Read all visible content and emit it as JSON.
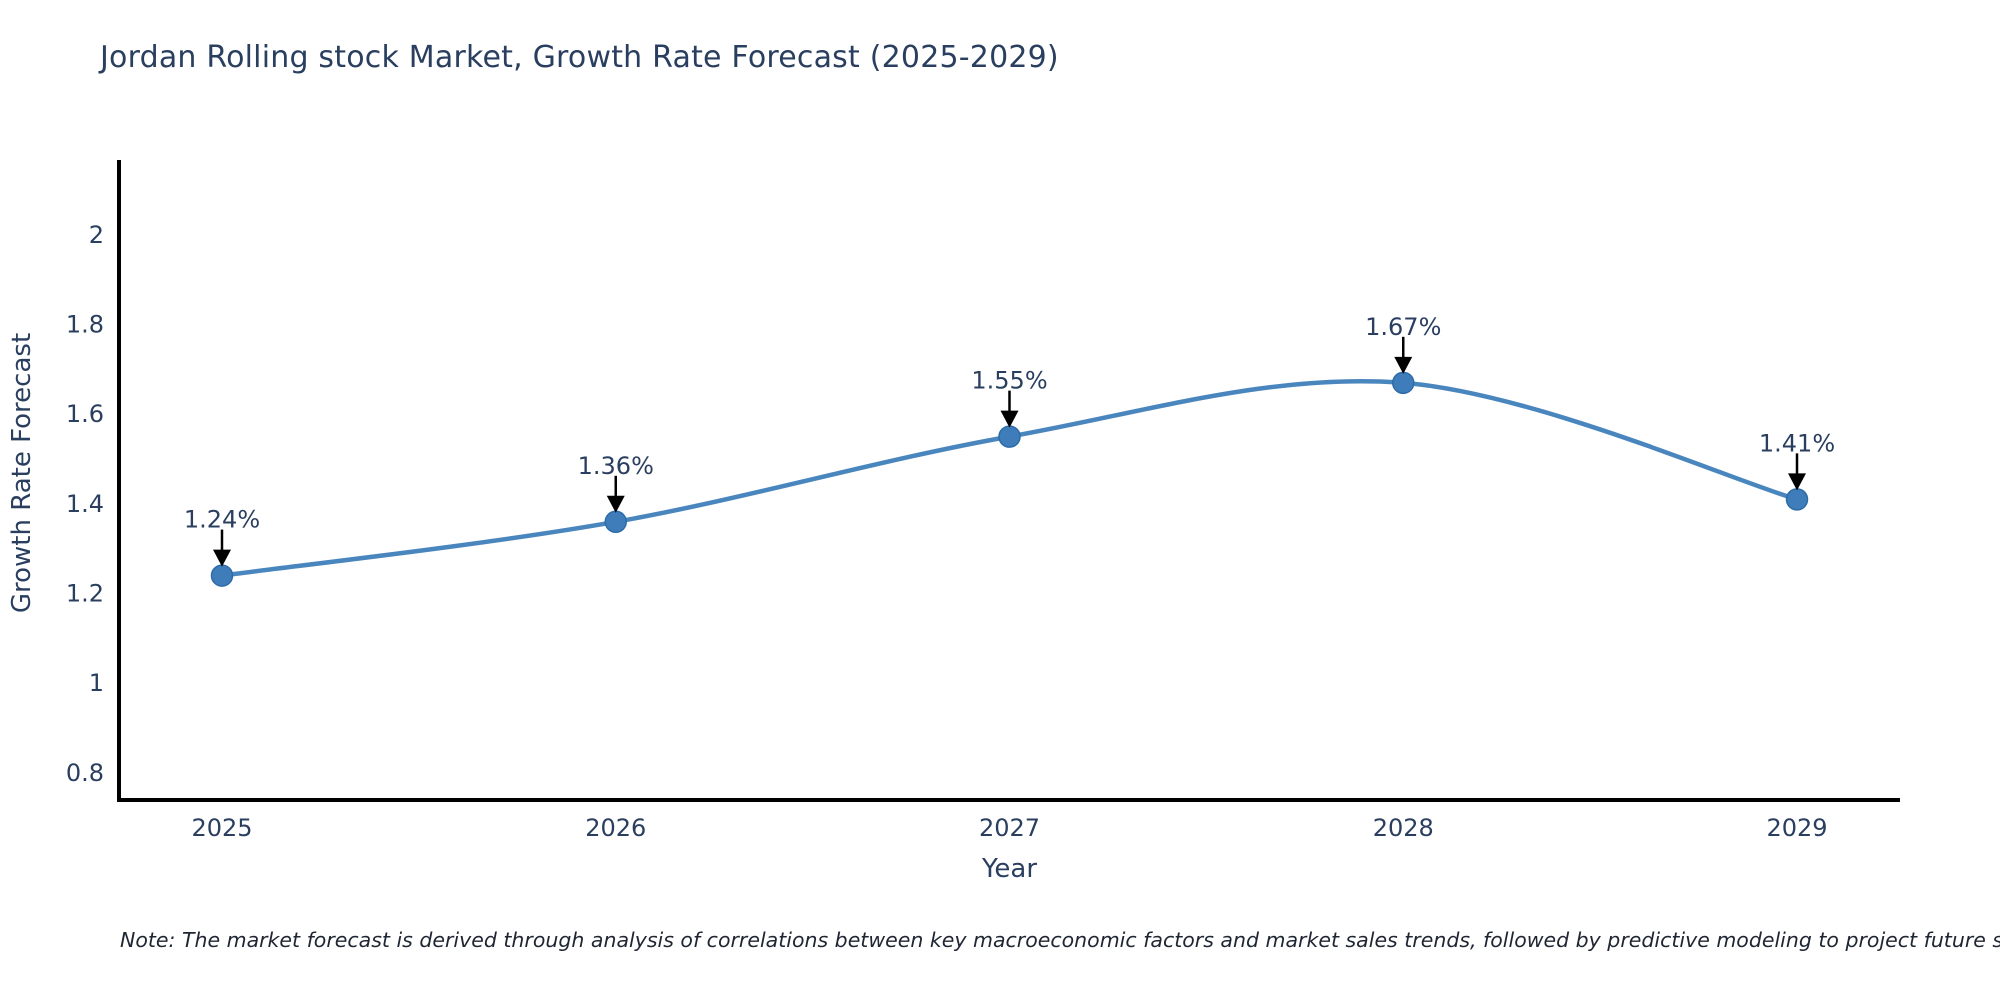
{
  "title": "Jordan Rolling stock Market, Growth Rate Forecast (2025-2029)",
  "note": "Note: The market forecast is derived through analysis of correlations between key macroeconomic factors and market sales trends, followed by predictive modeling to project future sales",
  "colors": {
    "title_text": "#2a3f5f",
    "tick_text": "#2a3f5f",
    "axis_line": "#000000",
    "series_line": "#4a86be",
    "marker_fill": "#3e7cba",
    "marker_edge": "#2e6ca8",
    "annotation_arrow": "#000000",
    "note_text": "#1f2633",
    "background": "#ffffff"
  },
  "chart_data": {
    "type": "line",
    "curve": "spline",
    "title": "Jordan Rolling stock Market, Growth Rate Forecast (2025-2029)",
    "xlabel": "Year",
    "ylabel": "Growth Rate Forecast",
    "x": [
      2025,
      2026,
      2027,
      2028,
      2029
    ],
    "values": [
      1.24,
      1.36,
      1.55,
      1.67,
      1.41
    ],
    "point_labels": [
      "1.24%",
      "1.36%",
      "1.55%",
      "1.67%",
      "1.41%"
    ],
    "xtick_labels": [
      "2025",
      "2026",
      "2027",
      "2028",
      "2029"
    ],
    "yticks": [
      2,
      1.8,
      1.6,
      1.4,
      1.2,
      1,
      0.8
    ],
    "ytick_labels": [
      "2",
      "1.8",
      "1.6",
      "1.4",
      "1.2",
      "1",
      "0.8"
    ],
    "ylim": [
      0.735,
      2.167
    ],
    "xlim": [
      2024.73,
      2029.26
    ],
    "grid": false,
    "legend": "none",
    "markers": true,
    "annotations": "value labels with downward arrows above each point"
  }
}
